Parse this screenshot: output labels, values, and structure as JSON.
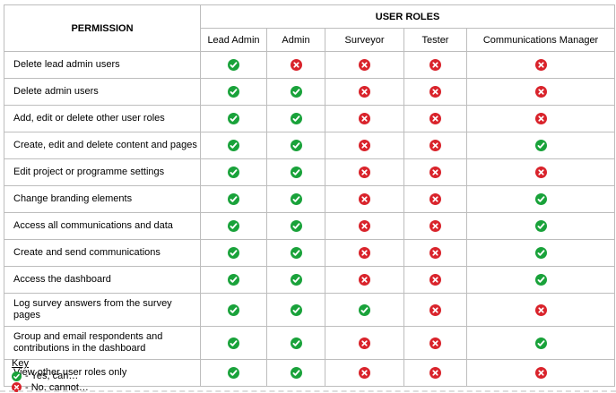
{
  "table": {
    "permission_header": "PERMISSION",
    "user_roles_header": "USER ROLES",
    "roles": [
      "Lead Admin",
      "Admin",
      "Surveyor",
      "Tester",
      "Communications Manager"
    ],
    "rows": [
      {
        "permission": "Delete lead admin users",
        "values": [
          "yes",
          "no",
          "no",
          "no",
          "no"
        ]
      },
      {
        "permission": "Delete admin users",
        "values": [
          "yes",
          "yes",
          "no",
          "no",
          "no"
        ]
      },
      {
        "permission": "Add, edit or delete other user roles",
        "values": [
          "yes",
          "yes",
          "no",
          "no",
          "no"
        ]
      },
      {
        "permission": "Create, edit and delete content and pages",
        "values": [
          "yes",
          "yes",
          "no",
          "no",
          "yes"
        ]
      },
      {
        "permission": "Edit project or programme settings",
        "values": [
          "yes",
          "yes",
          "no",
          "no",
          "no"
        ]
      },
      {
        "permission": "Change branding elements",
        "values": [
          "yes",
          "yes",
          "no",
          "no",
          "yes"
        ]
      },
      {
        "permission": "Access all communications and data",
        "values": [
          "yes",
          "yes",
          "no",
          "no",
          "yes"
        ]
      },
      {
        "permission": "Create and send communications",
        "values": [
          "yes",
          "yes",
          "no",
          "no",
          "yes"
        ]
      },
      {
        "permission": "Access the dashboard",
        "values": [
          "yes",
          "yes",
          "no",
          "no",
          "yes"
        ]
      },
      {
        "permission": "Log survey answers from the survey pages",
        "values": [
          "yes",
          "yes",
          "yes",
          "no",
          "no"
        ]
      },
      {
        "permission": "Group and email respondents and contributions in the dashboard",
        "values": [
          "yes",
          "yes",
          "no",
          "no",
          "yes"
        ]
      },
      {
        "permission": "View other user roles only",
        "values": [
          "yes",
          "yes",
          "no",
          "no",
          "no"
        ]
      }
    ]
  },
  "key": {
    "title": "Key",
    "yes_label": "- Yes, can…",
    "no_label": "- No, cannot…"
  },
  "icons": {
    "yes": {
      "name": "check-circle-icon",
      "color": "#19A23A"
    },
    "no": {
      "name": "cross-circle-icon",
      "color": "#D9232B"
    }
  },
  "colors": {
    "border": "#BDBDBD",
    "text": "#000000",
    "background": "#FFFFFF"
  }
}
